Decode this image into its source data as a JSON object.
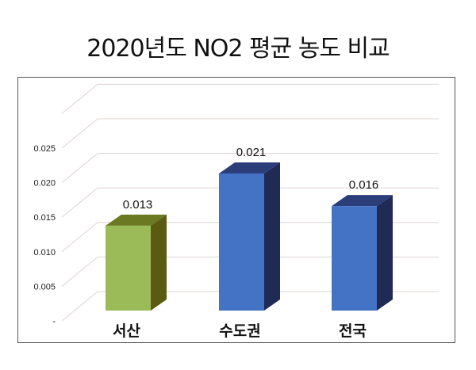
{
  "title": "2020년도 NO2 평균 농도 비교",
  "chart_data": {
    "type": "bar",
    "title": "2020년도 NO2 평균 농도 비교",
    "xlabel": "",
    "ylabel": "",
    "categories": [
      "서산",
      "수도권",
      "전국"
    ],
    "values": [
      0.013,
      0.021,
      0.016
    ],
    "value_labels": [
      "0.013",
      "0.021",
      "0.016"
    ],
    "bar_colors": [
      "#9bbb59",
      "#4472c4",
      "#4472c4"
    ],
    "ylim": [
      0,
      0.03
    ],
    "yticks": [
      "-",
      "0.005",
      "0.010",
      "0.015",
      "0.020",
      "0.025"
    ],
    "grid": true,
    "style": "3d-column",
    "legend": "none"
  }
}
